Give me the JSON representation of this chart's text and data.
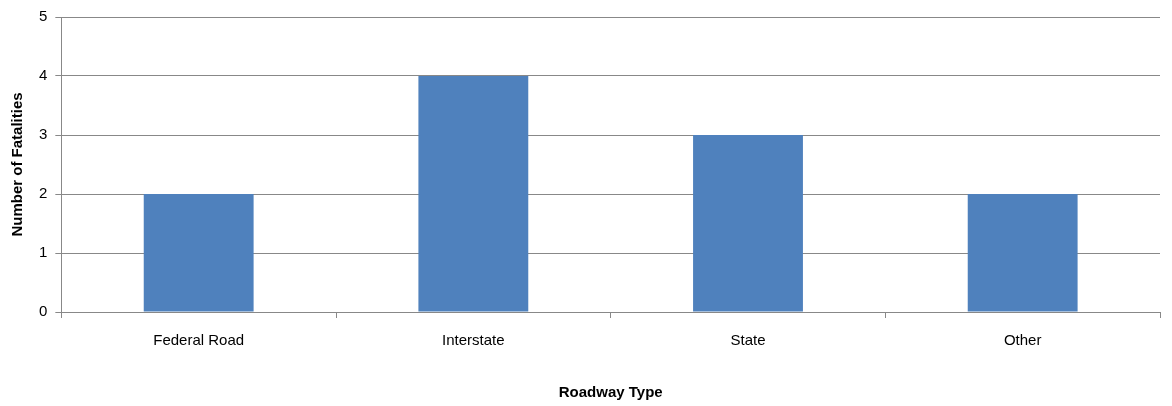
{
  "chart_data": {
    "type": "bar",
    "xlabel": "Roadway Type",
    "ylabel": "Number of Fatalities",
    "categories": [
      "Federal Road",
      "Interstate",
      "State",
      "Other"
    ],
    "values": [
      2,
      4,
      3,
      2
    ],
    "color": "#4f81bd",
    "ylim": [
      0,
      5
    ],
    "yticks": [
      0,
      1,
      2,
      3,
      4,
      5
    ],
    "grid": "y",
    "legend": false
  }
}
